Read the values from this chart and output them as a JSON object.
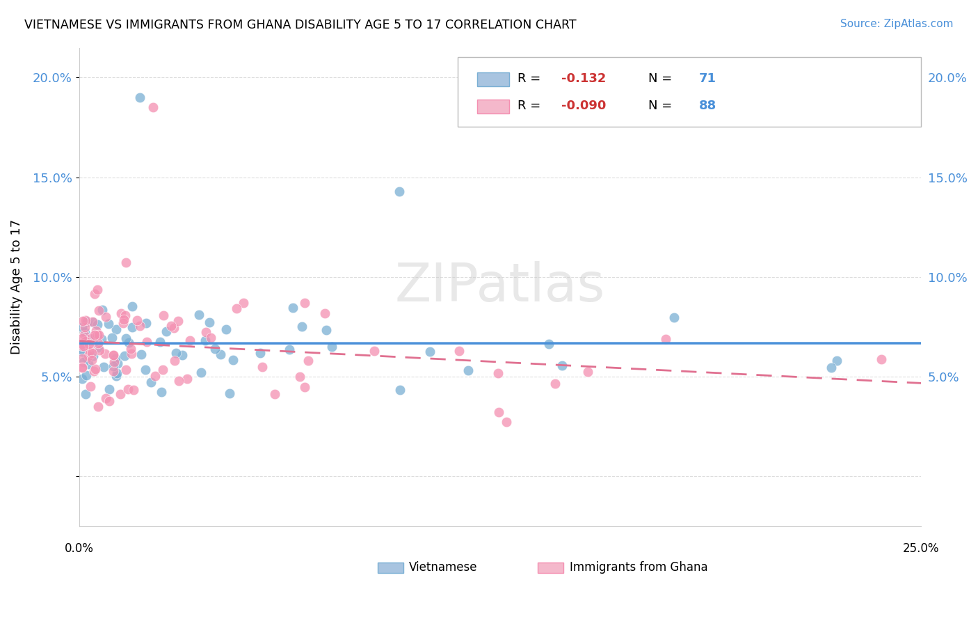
{
  "title": "VIETNAMESE VS IMMIGRANTS FROM GHANA DISABILITY AGE 5 TO 17 CORRELATION CHART",
  "source": "Source: ZipAtlas.com",
  "ylabel": "Disability Age 5 to 17",
  "yticks": [
    0.0,
    0.05,
    0.1,
    0.15,
    0.2
  ],
  "ytick_labels": [
    "",
    "5.0%",
    "10.0%",
    "15.0%",
    "20.0%"
  ],
  "xlim": [
    0.0,
    0.25
  ],
  "ylim": [
    -0.025,
    0.215
  ],
  "vietnamese_color": "#7aafd4",
  "ghana_color": "#f48fb1",
  "regression_blue": "#4a90d9",
  "regression_pink": "#e07090",
  "r_value_color": "#cc3333",
  "n_value_color": "#4a90d9",
  "watermark": "ZIPatlas",
  "tick_color": "#4a90d9",
  "grid_color": "#dddddd"
}
